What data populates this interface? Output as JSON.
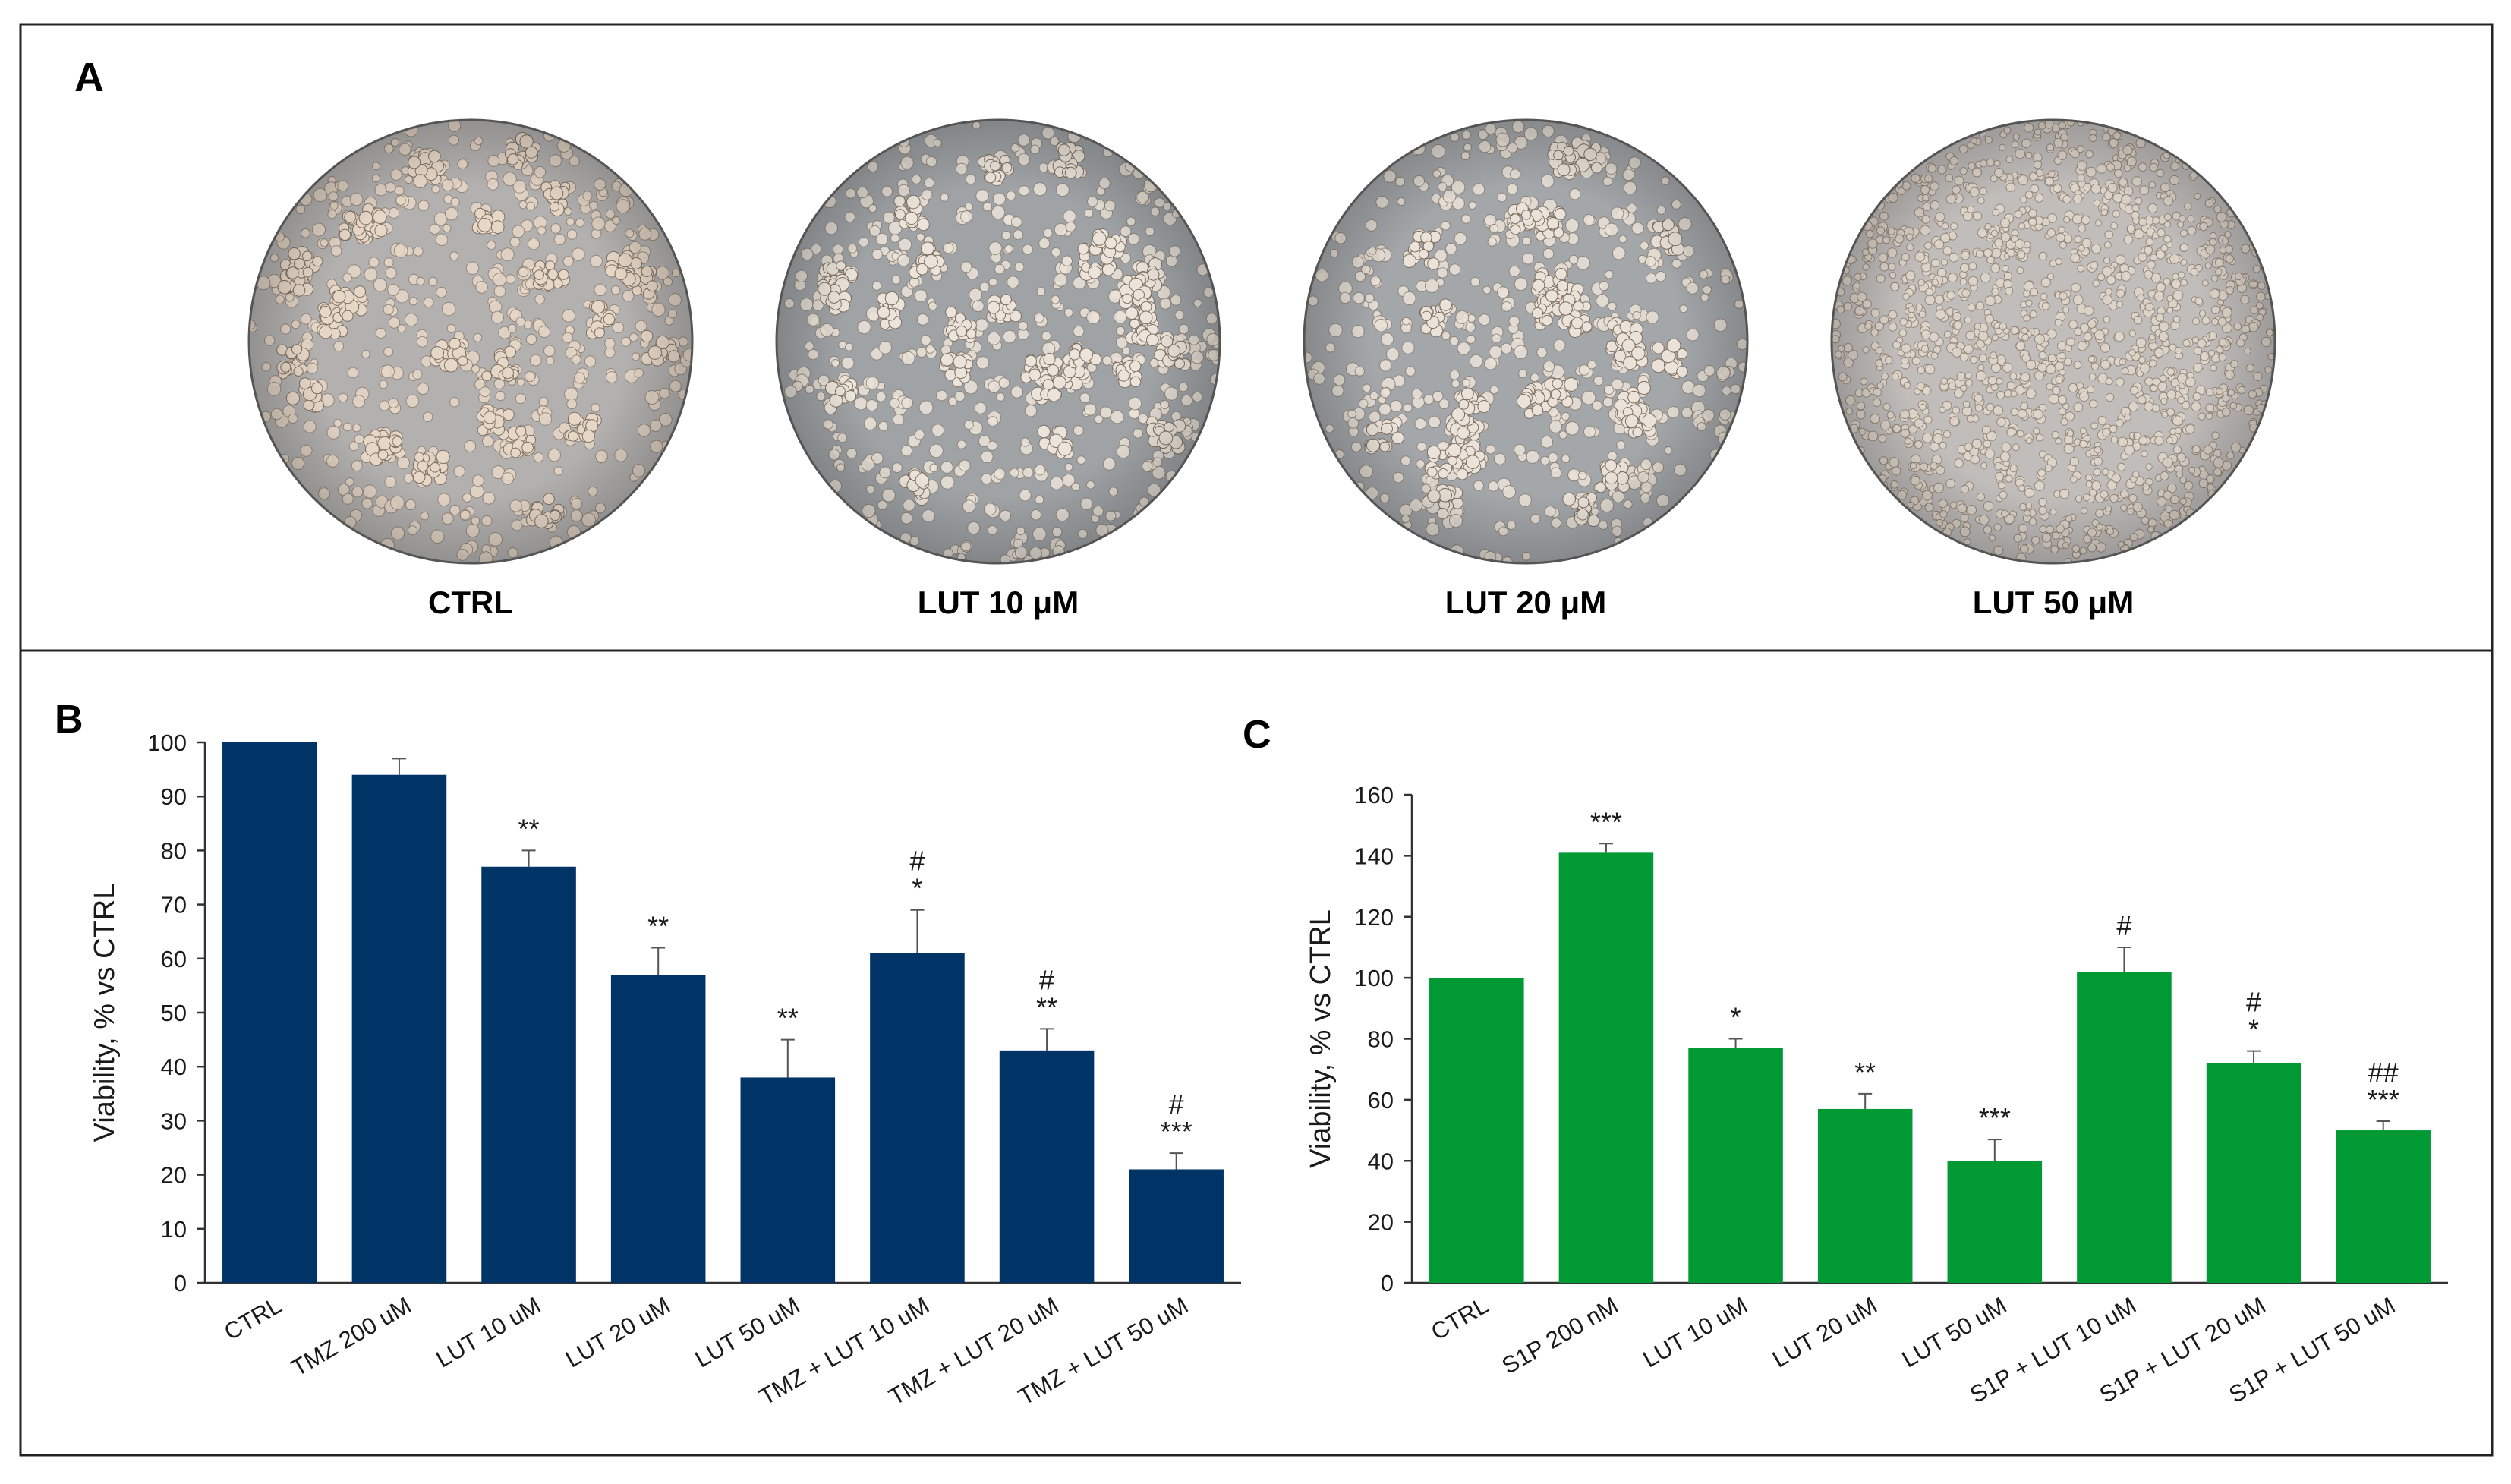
{
  "panel_a": {
    "letter": "A",
    "captions": [
      "CTRL",
      "LUT 10 μM",
      "LUT 20 μM",
      "LUT 50 μM"
    ],
    "images": [
      {
        "name": "micrograph-ctrl",
        "tone": "#b3b1b0",
        "cell_color": "#e7d7c7",
        "clusters": true
      },
      {
        "name": "micrograph-lut-10",
        "tone": "#9fa3a6",
        "cell_color": "#ece4da",
        "clusters": true
      },
      {
        "name": "micrograph-lut-20",
        "tone": "#a4a7aa",
        "cell_color": "#ebe3d9",
        "clusters": true
      },
      {
        "name": "micrograph-lut-50",
        "tone": "#c0bdbb",
        "cell_color": "#e2d7cc",
        "clusters": false
      }
    ]
  },
  "chart_data": [
    {
      "panel": "B",
      "type": "bar",
      "color": "#003366",
      "ylabel": "Viability, % vs CTRL",
      "ylim": [
        0,
        100
      ],
      "yticks": [
        0,
        10,
        20,
        30,
        40,
        50,
        60,
        70,
        80,
        90,
        100
      ],
      "categories": [
        "CTRL",
        "TMZ 200 uM",
        "LUT 10 uM",
        "LUT 20 uM",
        "LUT 50 uM",
        "TMZ + LUT 10 uM",
        "TMZ + LUT 20 uM",
        "TMZ + LUT 50 uM"
      ],
      "values": [
        100,
        94,
        77,
        57,
        38,
        61,
        43,
        21
      ],
      "errors": [
        0,
        3,
        3,
        5,
        7,
        8,
        4,
        3
      ],
      "annotations": [
        [],
        [],
        [
          "**"
        ],
        [
          "**"
        ],
        [
          "**"
        ],
        [
          "#",
          "*"
        ],
        [
          "#",
          "**"
        ],
        [
          "#",
          "***"
        ]
      ]
    },
    {
      "panel": "C",
      "type": "bar",
      "color": "#009933",
      "ylabel": "Viability, % vs CTRL",
      "ylim": [
        0,
        160
      ],
      "yticks": [
        0,
        20,
        40,
        60,
        80,
        100,
        120,
        140,
        160
      ],
      "categories": [
        "CTRL",
        "S1P 200 nM",
        "LUT 10 uM",
        "LUT 20 uM",
        "LUT 50 uM",
        "S1P + LUT 10 uM",
        "S1P + LUT 20 uM",
        "S1P + LUT 50 uM"
      ],
      "values": [
        100,
        141,
        77,
        57,
        40,
        102,
        72,
        50
      ],
      "errors": [
        0,
        3,
        3,
        5,
        7,
        8,
        4,
        3
      ],
      "annotations": [
        [],
        [
          "***"
        ],
        [
          "*"
        ],
        [
          "**"
        ],
        [
          "***"
        ],
        [
          "#"
        ],
        [
          "#",
          "*"
        ],
        [
          "##",
          "***"
        ]
      ]
    }
  ]
}
